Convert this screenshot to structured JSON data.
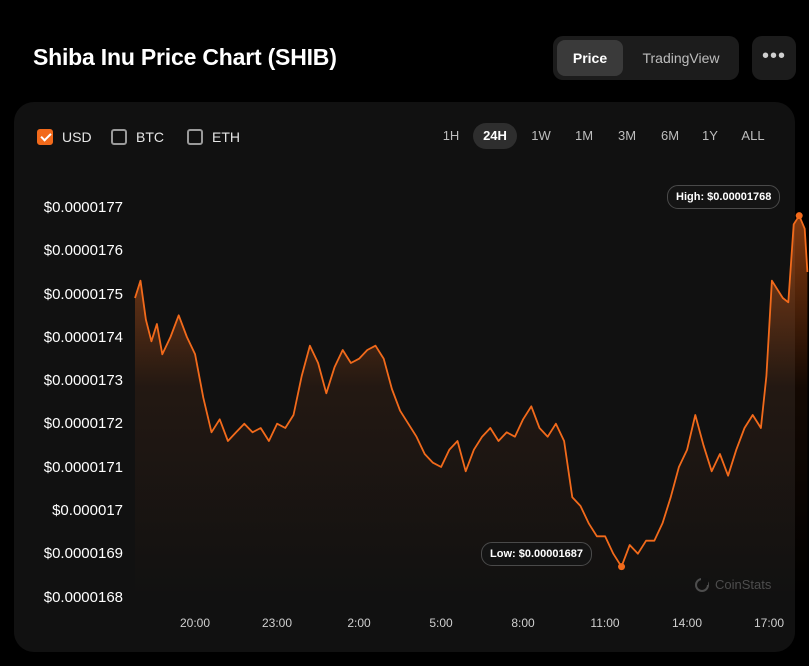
{
  "header": {
    "title": "Shiba Inu Price Chart (SHIB)",
    "view_toggle": [
      "Price",
      "TradingView"
    ],
    "more_label": "•••"
  },
  "currency_options": [
    {
      "label": "USD",
      "checked": true
    },
    {
      "label": "BTC",
      "checked": false
    },
    {
      "label": "ETH",
      "checked": false
    }
  ],
  "time_ranges": [
    "1H",
    "24H",
    "1W",
    "1M",
    "3M",
    "6M",
    "1Y",
    "ALL"
  ],
  "active_range": "24H",
  "watermark": "CoinStats",
  "colors": {
    "line": "#f26a1b",
    "accent": "#f26a1b",
    "background": "#000000",
    "card": "#111111"
  },
  "chart_data": {
    "type": "area",
    "title": "",
    "xlabel": "",
    "ylabel": "",
    "y_ticks": [
      "$0.0000177",
      "$0.0000176",
      "$0.0000175",
      "$0.0000174",
      "$0.0000173",
      "$0.0000172",
      "$0.0000171",
      "$0.000017",
      "$0.0000169",
      "$0.0000168"
    ],
    "y_tick_values": [
      1.77e-05,
      1.76e-05,
      1.75e-05,
      1.74e-05,
      1.73e-05,
      1.72e-05,
      1.71e-05,
      1.7e-05,
      1.69e-05,
      1.68e-05
    ],
    "ylim": [
      1.68e-05,
      1.77e-05
    ],
    "x_ticks": [
      "20:00",
      "23:00",
      "2:00",
      "5:00",
      "8:00",
      "11:00",
      "14:00",
      "17:00"
    ],
    "x_tick_hours": [
      20,
      23,
      26,
      29,
      32,
      35,
      38,
      41
    ],
    "xlim_hours": [
      17.0,
      41.6
    ],
    "x_hours": [
      17.0,
      17.2,
      17.4,
      17.6,
      17.8,
      18.0,
      18.3,
      18.6,
      18.9,
      19.2,
      19.5,
      19.8,
      20.1,
      20.4,
      20.7,
      21.0,
      21.3,
      21.6,
      21.9,
      22.2,
      22.5,
      22.8,
      23.1,
      23.4,
      23.7,
      24.0,
      24.3,
      24.6,
      24.9,
      25.2,
      25.5,
      25.8,
      26.1,
      26.4,
      26.7,
      27.0,
      27.3,
      27.6,
      27.9,
      28.2,
      28.5,
      28.8,
      29.1,
      29.4,
      29.7,
      30.0,
      30.3,
      30.6,
      30.9,
      31.2,
      31.5,
      31.8,
      32.1,
      32.4,
      32.7,
      33.0,
      33.3,
      33.6,
      33.9,
      34.2,
      34.5,
      34.8,
      35.1,
      35.4,
      35.7,
      36.0,
      36.3,
      36.6,
      36.9,
      37.2,
      37.5,
      37.8,
      38.1,
      38.4,
      38.7,
      39.0,
      39.3,
      39.6,
      39.9,
      40.1,
      40.3,
      40.5,
      40.7,
      40.9,
      41.1,
      41.3,
      41.5,
      41.6
    ],
    "y_values": [
      1.749e-05,
      1.753e-05,
      1.744e-05,
      1.739e-05,
      1.743e-05,
      1.736e-05,
      1.74e-05,
      1.745e-05,
      1.74e-05,
      1.736e-05,
      1.726e-05,
      1.718e-05,
      1.721e-05,
      1.716e-05,
      1.718e-05,
      1.72e-05,
      1.718e-05,
      1.719e-05,
      1.716e-05,
      1.72e-05,
      1.719e-05,
      1.722e-05,
      1.731e-05,
      1.738e-05,
      1.734e-05,
      1.727e-05,
      1.733e-05,
      1.737e-05,
      1.734e-05,
      1.735e-05,
      1.737e-05,
      1.738e-05,
      1.735e-05,
      1.728e-05,
      1.723e-05,
      1.72e-05,
      1.717e-05,
      1.713e-05,
      1.711e-05,
      1.71e-05,
      1.714e-05,
      1.716e-05,
      1.709e-05,
      1.714e-05,
      1.717e-05,
      1.719e-05,
      1.716e-05,
      1.718e-05,
      1.717e-05,
      1.721e-05,
      1.724e-05,
      1.719e-05,
      1.717e-05,
      1.72e-05,
      1.716e-05,
      1.703e-05,
      1.701e-05,
      1.697e-05,
      1.694e-05,
      1.694e-05,
      1.69e-05,
      1.687e-05,
      1.692e-05,
      1.69e-05,
      1.693e-05,
      1.693e-05,
      1.697e-05,
      1.703e-05,
      1.71e-05,
      1.714e-05,
      1.722e-05,
      1.715e-05,
      1.709e-05,
      1.713e-05,
      1.708e-05,
      1.714e-05,
      1.719e-05,
      1.722e-05,
      1.719e-05,
      1.731e-05,
      1.753e-05,
      1.751e-05,
      1.749e-05,
      1.748e-05,
      1.766e-05,
      1.768e-05,
      1.765e-05,
      1.755e-05
    ],
    "high": {
      "label": "High: $0.00001768",
      "hour": 41.3,
      "value": 1.768e-05
    },
    "low": {
      "label": "Low: $0.00001687",
      "hour": 34.8,
      "value": 1.687e-05
    },
    "grid": false,
    "legend": "none"
  }
}
